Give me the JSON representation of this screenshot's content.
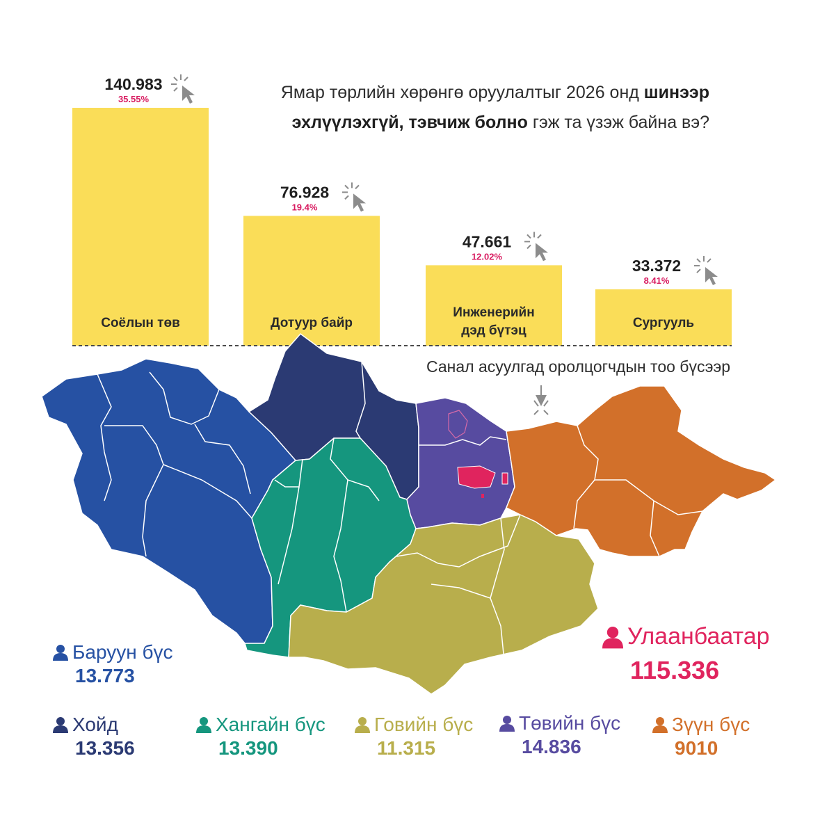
{
  "question": {
    "line1_normal": "Ямар төрлийн хөрөнгө оруулалтыг 2026 онд ",
    "line1_bold": "шинээр",
    "line2_bold": "эхлүүлэхгүй, тэвчиж болно",
    "line2_normal": " гэж  та үзэж  байна вэ?"
  },
  "chart_data": {
    "type": "bar",
    "categories": [
      "Соёлын төв",
      "Дотуур байр",
      "Инженерийн дэд бүтэц",
      "Сургууль"
    ],
    "category_lines": [
      [
        "Соёлын төв"
      ],
      [
        "Дотуур байр"
      ],
      [
        "Инженерийн",
        "дэд бүтэц"
      ],
      [
        "Сургууль"
      ]
    ],
    "values": [
      140983,
      76928,
      47661,
      33372
    ],
    "value_labels": [
      "140.983",
      "76.928",
      "47.661",
      "33.372"
    ],
    "percent_labels": [
      "35.55%",
      "19.4%",
      "12.02%",
      "8.41%"
    ],
    "ylim": [
      0,
      140983
    ],
    "bar_color": "#fadd58",
    "percent_color": "#d81b60",
    "value_color": "#1f1f1f"
  },
  "map_caption": "Санал асуулгад оролцогчдын тоо бүсээр",
  "regions": {
    "west": {
      "name": "Баруун бүс",
      "count": "13.773",
      "color": "#2651a3"
    },
    "north": {
      "name": "Хойд",
      "count": "13.356",
      "color": "#2b3a73"
    },
    "khangai": {
      "name": "Хангайн бүс",
      "count": "13.390",
      "color": "#15967e"
    },
    "gobi": {
      "name": "Говийн бүс",
      "count": "11.315",
      "color": "#b8ae4c"
    },
    "central": {
      "name": "Төвийн бүс",
      "count": "14.836",
      "color": "#574ba0"
    },
    "east": {
      "name": "Зүүн бүс",
      "count": "9010",
      "color": "#d2702a"
    },
    "ub": {
      "name": "Улаанбаатар",
      "count": "115.336",
      "color": "#e0245e"
    }
  },
  "icons": {
    "cursor": "cursor-click-icon",
    "person": "person-icon",
    "arrow": "down-arrow-icon"
  }
}
